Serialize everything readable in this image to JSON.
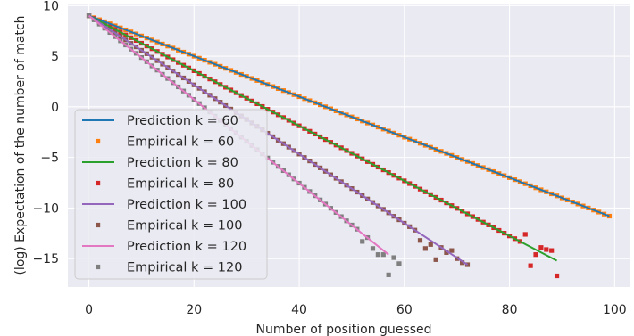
{
  "chart_data": {
    "type": "line",
    "xlabel": "Number of position guessed",
    "ylabel": "(log) Expectation of the number of match",
    "xlim": [
      -4,
      103
    ],
    "ylim": [
      -17.8,
      10.2
    ],
    "xticks": [
      0,
      20,
      40,
      60,
      80,
      100
    ],
    "yticks": [
      10,
      5,
      0,
      -5,
      -10,
      -15
    ],
    "xtick_labels": [
      "0",
      "20",
      "40",
      "60",
      "80",
      "100"
    ],
    "ytick_labels": [
      "10",
      "5",
      "0",
      "−5",
      "−10",
      "−15"
    ],
    "grid": true,
    "legend_position": "lower-left",
    "series": [
      {
        "name": "Prediction k = 60",
        "kind": "line",
        "color": "#1f77b4",
        "k": 60,
        "x_start": 0,
        "x_end": 99,
        "y_start": 9,
        "y_end": -10.8
      },
      {
        "name": "Empirical k = 60",
        "kind": "points",
        "color": "#ff7f0e",
        "k": 60,
        "x_start": 0,
        "x_end": 99,
        "y_start": 9,
        "y_end": -10.8
      },
      {
        "name": "Prediction k = 80",
        "kind": "line",
        "color": "#2ca02c",
        "k": 80,
        "x_start": 0,
        "x_end": 89,
        "y_start": 9,
        "y_end": -15.2
      },
      {
        "name": "Empirical k = 80",
        "kind": "points",
        "color": "#d62728",
        "k": 80,
        "x_start": 0,
        "x_end": 89,
        "y_start": 9,
        "y_end": -15.2,
        "noisy_points": [
          [
            82,
            -13.3
          ],
          [
            83,
            -12.6
          ],
          [
            84,
            -15.7
          ],
          [
            85,
            -14.6
          ],
          [
            86,
            -13.9
          ],
          [
            87,
            -14.1
          ],
          [
            88,
            -14.2
          ],
          [
            89,
            -16.7
          ]
        ]
      },
      {
        "name": "Prediction k = 100",
        "kind": "line",
        "color": "#9467bd",
        "k": 100,
        "x_start": 0,
        "x_end": 72,
        "y_start": 9,
        "y_end": -15.6
      },
      {
        "name": "Empirical k = 100",
        "kind": "points",
        "color": "#8c564b",
        "k": 100,
        "x_start": 0,
        "x_end": 72,
        "y_start": 9,
        "y_end": -15.6,
        "noisy_points": [
          [
            63,
            -13.2
          ],
          [
            64,
            -14.0
          ],
          [
            65,
            -13.6
          ],
          [
            66,
            -15.1
          ],
          [
            67,
            -13.9
          ],
          [
            68,
            -14.4
          ],
          [
            69,
            -14.2
          ],
          [
            70,
            -15.0
          ],
          [
            71,
            -15.4
          ]
        ]
      },
      {
        "name": "Prediction k = 120",
        "kind": "line",
        "color": "#e377c2",
        "k": 120,
        "x_start": 0,
        "x_end": 57,
        "y_start": 9,
        "y_end": -14.6
      },
      {
        "name": "Empirical k = 120",
        "kind": "points",
        "color": "#7f7f7f",
        "k": 120,
        "x_start": 0,
        "x_end": 59,
        "y_start": 9,
        "y_end": -15.4,
        "noisy_points": [
          [
            52,
            -13.3
          ],
          [
            54,
            -14.0
          ],
          [
            55,
            -14.6
          ],
          [
            56,
            -14.6
          ],
          [
            57,
            -16.6
          ],
          [
            58,
            -14.9
          ],
          [
            59,
            -15.5
          ]
        ]
      }
    ]
  }
}
